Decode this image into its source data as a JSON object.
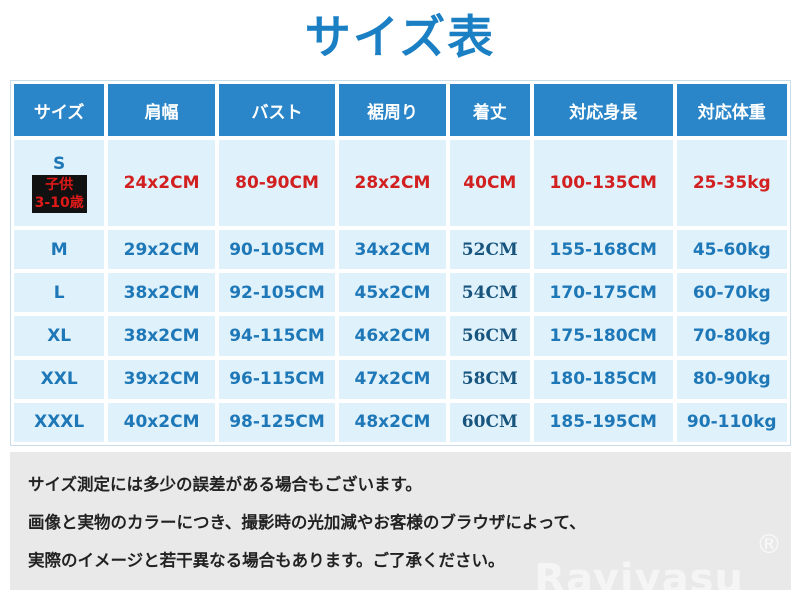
{
  "title": "サイズ表",
  "table": {
    "headers": [
      "サイズ",
      "肩幅",
      "バスト",
      "裾周り",
      "着丈",
      "対応身長",
      "対応体重"
    ],
    "highlight_color": "#d21f1f",
    "cell_color": "#1e78b8",
    "header_bg": "#2a86c8",
    "cell_bg": "#dff1fa",
    "rows": [
      {
        "size": "S",
        "badge_line1": "子供",
        "badge_line2": "3-10歳",
        "shoulder": "24x2CM",
        "bust": "80-90CM",
        "hem": "28x2CM",
        "length": "40CM",
        "height": "100-135CM",
        "weight": "25-35kg"
      },
      {
        "size": "M",
        "shoulder": "29x2CM",
        "bust": "90-105CM",
        "hem": "34x2CM",
        "length": "52CM",
        "height": "155-168CM",
        "weight": "45-60kg"
      },
      {
        "size": "L",
        "shoulder": "38x2CM",
        "bust": "92-105CM",
        "hem": "45x2CM",
        "length": "54CM",
        "height": "170-175CM",
        "weight": "60-70kg"
      },
      {
        "size": "XL",
        "shoulder": "38x2CM",
        "bust": "94-115CM",
        "hem": "46x2CM",
        "length": "56CM",
        "height": "175-180CM",
        "weight": "70-80kg"
      },
      {
        "size": "XXL",
        "shoulder": "39x2CM",
        "bust": "96-115CM",
        "hem": "47x2CM",
        "length": "58CM",
        "height": "180-185CM",
        "weight": "80-90kg"
      },
      {
        "size": "XXXL",
        "shoulder": "40x2CM",
        "bust": "98-125CM",
        "hem": "48x2CM",
        "length": "60CM",
        "height": "185-195CM",
        "weight": "90-110kg"
      }
    ]
  },
  "notes": [
    "サイズ測定には多少の誤差がある場合もございます。",
    "画像と実物のカラーにつき、撮影時の光加減やお客様のブラウザによって、",
    "実際のイメージと若干異なる場合もあります。ご了承ください。"
  ],
  "watermark": "Rayiyasu",
  "watermark_mark": "®"
}
